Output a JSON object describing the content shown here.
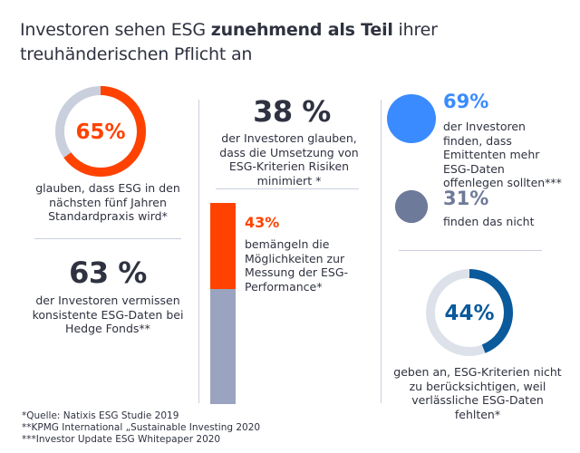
{
  "title": {
    "plain1": "Investoren sehen ESG ",
    "bold": "zunehmend als Teil",
    "plain2": " ihrer",
    "line2": "treuhänderischen Pflicht an"
  },
  "colors": {
    "orange": "#ff4200",
    "blue": "#3a8bff",
    "slate": "#6e7a9a",
    "ring_track": "#c9cfdc",
    "dark_blue": "#0a5a9c",
    "bar_gray": "#9aa4c0"
  },
  "chart_data": [
    {
      "type": "donut",
      "value": 65,
      "label": "65%",
      "caption": "glauben, dass ESG in den nächsten fünf Jahren Standardpraxis wird*"
    },
    {
      "type": "stat",
      "value": 63,
      "label": "63 %",
      "caption": "der Investoren vermissen konsistente ESG-Daten bei Hedge Fonds**"
    },
    {
      "type": "stat",
      "value": 38,
      "label": "38 %",
      "caption": "der Investoren glauben, dass die Umsetzung von ESG-Kriterien Risiken minimiert *"
    },
    {
      "type": "stacked-bar",
      "value": 43,
      "label": "43%",
      "caption": "bemängeln die Möglichkeiten zur Messung der ESG-Performance*"
    },
    {
      "type": "bubble-comparison",
      "items": [
        {
          "value": 69,
          "label": "69%",
          "caption": "der Investoren finden, dass Emittenten mehr ESG-Daten offenlegen sollten***"
        },
        {
          "value": 31,
          "label": "31%",
          "caption": "finden das nicht"
        }
      ]
    },
    {
      "type": "donut",
      "value": 44,
      "label": "44%",
      "caption": "geben an, ESG-Kriterien nicht zu berücksichtigen, weil verlässliche ESG-Daten fehlten*"
    }
  ],
  "footnotes": [
    "*Quelle: Natixis ESG Studie 2019",
    "**KPMG International „Sustainable Investing 2020",
    "***Investor Update ESG Whitepaper 2020"
  ]
}
